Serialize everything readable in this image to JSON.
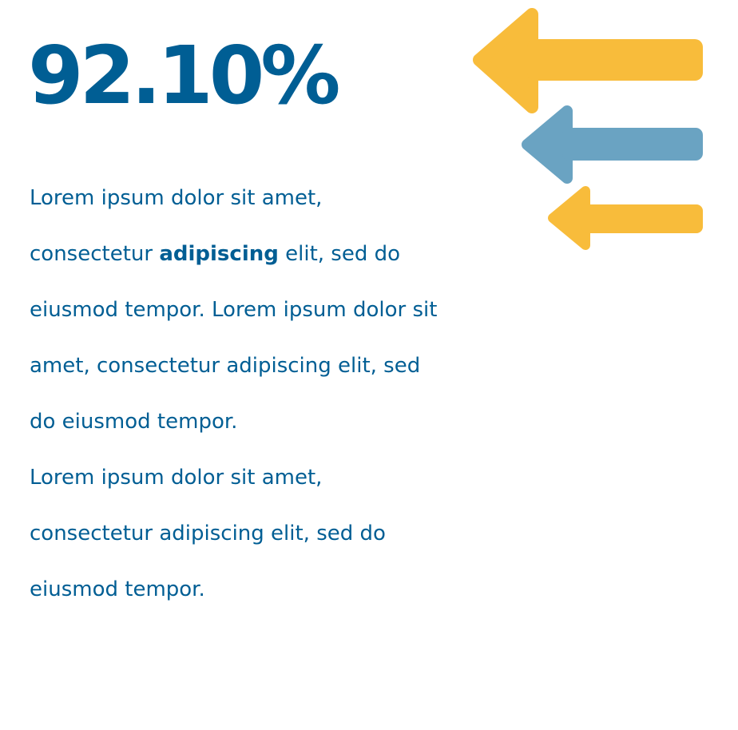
{
  "headline": {
    "value": "92.10%"
  },
  "paragraph_1": {
    "before_bold": "Lorem ipsum dolor sit amet, consectetur ",
    "bold": "adipiscing",
    "after_bold": " elit, sed do eiusmod tempor. Lorem ipsum dolor sit amet, consectetur adipiscing elit, sed do eiusmod tempor."
  },
  "paragraph_2": {
    "text": "Lorem ipsum dolor sit amet, consectetur adipiscing elit, sed do eiusmod tempor."
  },
  "colors": {
    "primary": "#005e94",
    "arrow_yellow": "#f8bc3b",
    "arrow_blue": "#6aa3c2"
  },
  "icons": {
    "arrow_1": "left-arrow-icon",
    "arrow_2": "left-arrow-icon",
    "arrow_3": "left-arrow-icon"
  }
}
